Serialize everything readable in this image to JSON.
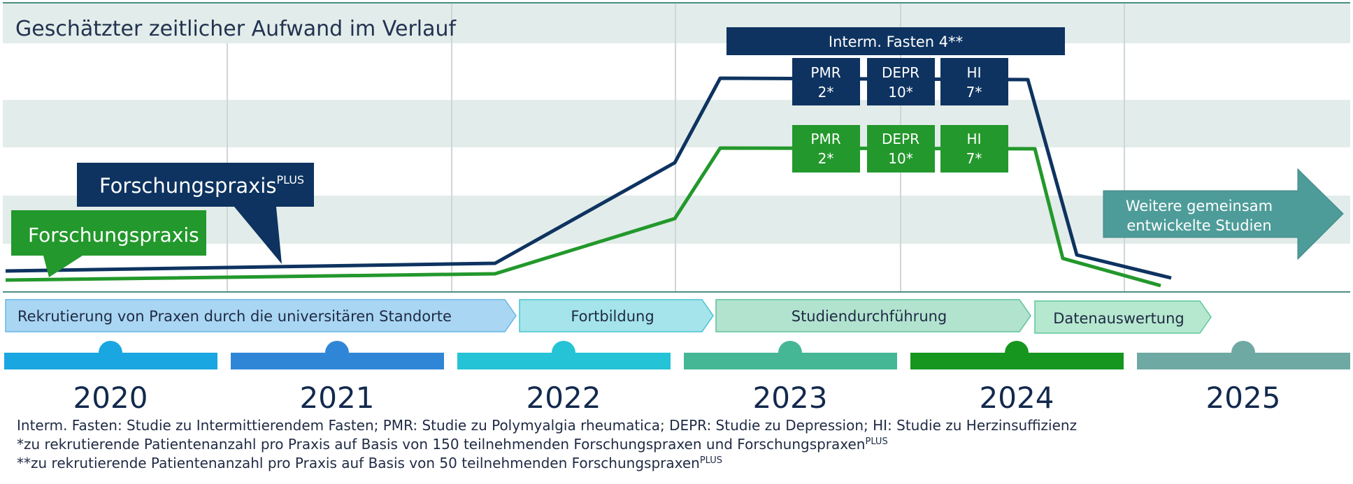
{
  "title": "Geschätzter zeitlicher Aufwand im Verlauf",
  "colors": {
    "plus": "#0e3360",
    "praxis": "#23982c",
    "band": "#e2ecea",
    "teal_arrow": "#4e9c99"
  },
  "series": {
    "plus": {
      "label": "Forschungspraxis",
      "label_sup": "PLUS"
    },
    "praxis": {
      "label": "Forschungspraxis"
    }
  },
  "top_banner": "Interm. Fasten 4**",
  "plus_studies": [
    {
      "name": "PMR",
      "value": "2*"
    },
    {
      "name": "DEPR",
      "value": "10*"
    },
    {
      "name": "HI",
      "value": "7*"
    }
  ],
  "praxis_studies": [
    {
      "name": "PMR",
      "value": "2*"
    },
    {
      "name": "DEPR",
      "value": "10*"
    },
    {
      "name": "HI",
      "value": "7*"
    }
  ],
  "future_arrow": {
    "line1": "Weitere gemeinsam",
    "line2": "entwickelte Studien"
  },
  "phases": [
    {
      "label": "Rekrutierung von Praxen durch die universitären Standorte",
      "color": "#a9d6f3"
    },
    {
      "label": "Fortbildung",
      "color": "#a4e4ea"
    },
    {
      "label": "Studiendurchführung",
      "color": "#b2e3cf"
    },
    {
      "label": "Datenauswertung",
      "color": "#b6e8cf"
    }
  ],
  "years": [
    {
      "label": "2020",
      "color": "#1aa6e0"
    },
    {
      "label": "2021",
      "color": "#2f86d6"
    },
    {
      "label": "2022",
      "color": "#24c3d6"
    },
    {
      "label": "2023",
      "color": "#45b794"
    },
    {
      "label": "2024",
      "color": "#16951f"
    },
    {
      "label": "2025",
      "color": "#6fa9a4"
    }
  ],
  "footnotes": {
    "line1": "Interm. Fasten: Studie zu Intermittierendem Fasten; PMR: Studie zu Polymyalgia rheumatica; DEPR: Studie zu Depression; HI: Studie zu Herzinsuffizienz",
    "line2": "*zu rekrutierende Patientenanzahl pro Praxis auf Basis von 150 teilnehmenden Forschungspraxen und Forschungspraxen",
    "line2_sup": "PLUS",
    "line3": "**zu rekrutierende Patientenanzahl pro Praxis auf Basis von 50 teilnehmenden Forschungspraxen",
    "line3_sup": "PLUS"
  }
}
